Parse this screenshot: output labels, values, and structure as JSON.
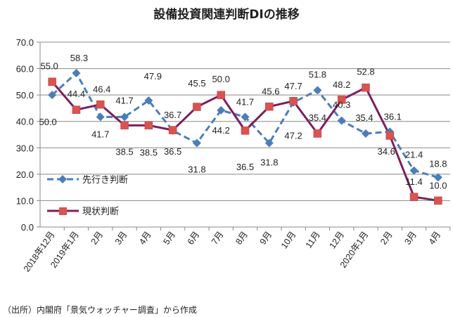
{
  "chart_data": {
    "type": "line",
    "title": "設備投資関連判断DIの推移",
    "source": "（出所）内閣府「景気ウォッチャー調査」から作成",
    "categories": [
      "2018年12月",
      "2019年1月",
      "2月",
      "3月",
      "4月",
      "5月",
      "6月",
      "7月",
      "8月",
      "9月",
      "10月",
      "11月",
      "12月",
      "2020年1月",
      "2月",
      "3月",
      "4月"
    ],
    "ylim": [
      0,
      70
    ],
    "yticks": [
      "0.0",
      "10.0",
      "20.0",
      "30.0",
      "40.0",
      "50.0",
      "60.0",
      "70.0"
    ],
    "grid": true,
    "legend_placement": "left-bottom inside",
    "series": [
      {
        "name": "先行き判断",
        "color": "#4a7ebb",
        "style": "dashed",
        "marker": "diamond",
        "values": [
          50.0,
          58.3,
          41.7,
          41.7,
          47.9,
          36.5,
          31.8,
          44.2,
          41.7,
          31.8,
          47.2,
          51.8,
          40.3,
          35.4,
          36.1,
          21.4,
          18.8
        ]
      },
      {
        "name": "現状判断",
        "color": "#7b1f5e",
        "marker_color": "#d9534f",
        "style": "solid",
        "marker": "square",
        "values": [
          55.0,
          44.4,
          46.4,
          38.5,
          38.5,
          36.7,
          45.5,
          50.0,
          36.5,
          45.6,
          47.7,
          35.4,
          48.2,
          52.8,
          34.6,
          11.4,
          10.0
        ]
      }
    ]
  }
}
